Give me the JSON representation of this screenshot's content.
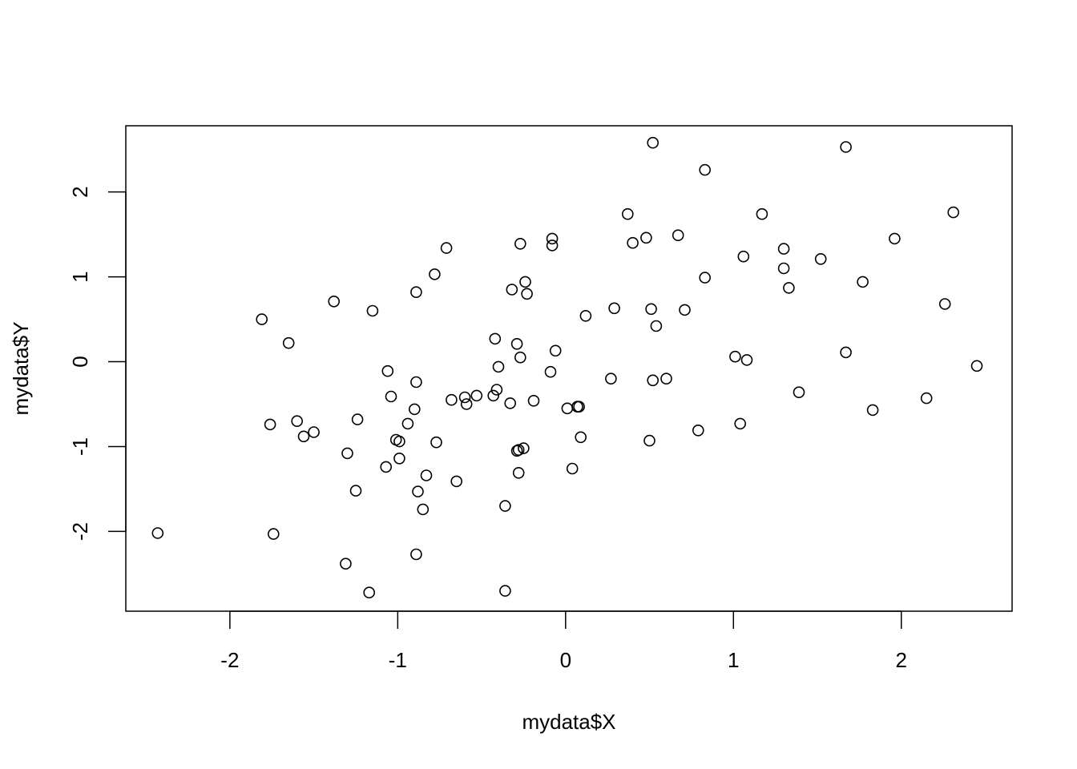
{
  "chart_data": {
    "type": "scatter",
    "title": "",
    "xlabel": "mydata$X",
    "ylabel": "mydata$Y",
    "xlim": [
      -2.62,
      2.66
    ],
    "ylim": [
      -2.94,
      2.78
    ],
    "xticks": [
      -2,
      -1,
      0,
      1,
      2
    ],
    "yticks": [
      -2,
      -1,
      0,
      1,
      2
    ],
    "xtick_labels": [
      "-2",
      "-1",
      "0",
      "1",
      "2"
    ],
    "ytick_labels": [
      "-2",
      "-1",
      "0",
      "1",
      "2"
    ],
    "grid": false,
    "legend": "none",
    "marker": "open-circle",
    "points": [
      {
        "x": -2.43,
        "y": -2.02
      },
      {
        "x": -1.81,
        "y": 0.5
      },
      {
        "x": -1.76,
        "y": -0.74
      },
      {
        "x": -1.74,
        "y": -2.03
      },
      {
        "x": -1.65,
        "y": 0.22
      },
      {
        "x": -1.6,
        "y": -0.7
      },
      {
        "x": -1.56,
        "y": -0.88
      },
      {
        "x": -1.5,
        "y": -0.83
      },
      {
        "x": -1.38,
        "y": 0.71
      },
      {
        "x": -1.31,
        "y": -2.38
      },
      {
        "x": -1.3,
        "y": -1.08
      },
      {
        "x": -1.25,
        "y": -1.52
      },
      {
        "x": -1.24,
        "y": -0.68
      },
      {
        "x": -1.17,
        "y": -2.72
      },
      {
        "x": -1.15,
        "y": 0.6
      },
      {
        "x": -1.07,
        "y": -1.24
      },
      {
        "x": -1.06,
        "y": -0.11
      },
      {
        "x": -1.04,
        "y": -0.41
      },
      {
        "x": -1.01,
        "y": -0.92
      },
      {
        "x": -0.99,
        "y": -0.94
      },
      {
        "x": -0.99,
        "y": -1.14
      },
      {
        "x": -0.94,
        "y": -0.73
      },
      {
        "x": -0.9,
        "y": -0.56
      },
      {
        "x": -0.89,
        "y": -0.24
      },
      {
        "x": -0.89,
        "y": 0.82
      },
      {
        "x": -0.89,
        "y": -2.27
      },
      {
        "x": -0.88,
        "y": -1.53
      },
      {
        "x": -0.85,
        "y": -1.74
      },
      {
        "x": -0.83,
        "y": -1.34
      },
      {
        "x": -0.78,
        "y": 1.03
      },
      {
        "x": -0.77,
        "y": -0.95
      },
      {
        "x": -0.71,
        "y": 1.34
      },
      {
        "x": -0.68,
        "y": -0.45
      },
      {
        "x": -0.65,
        "y": -1.41
      },
      {
        "x": -0.6,
        "y": -0.42
      },
      {
        "x": -0.59,
        "y": -0.5
      },
      {
        "x": -0.53,
        "y": -0.4
      },
      {
        "x": -0.43,
        "y": -0.4
      },
      {
        "x": -0.42,
        "y": 0.27
      },
      {
        "x": -0.41,
        "y": -0.33
      },
      {
        "x": -0.4,
        "y": -0.06
      },
      {
        "x": -0.36,
        "y": -2.7
      },
      {
        "x": -0.36,
        "y": -1.7
      },
      {
        "x": -0.33,
        "y": -0.49
      },
      {
        "x": -0.32,
        "y": 0.85
      },
      {
        "x": -0.29,
        "y": 0.21
      },
      {
        "x": -0.29,
        "y": -1.05
      },
      {
        "x": -0.28,
        "y": -1.31
      },
      {
        "x": -0.28,
        "y": -1.04
      },
      {
        "x": -0.27,
        "y": 1.39
      },
      {
        "x": -0.27,
        "y": 0.05
      },
      {
        "x": -0.25,
        "y": -1.02
      },
      {
        "x": -0.24,
        "y": 0.94
      },
      {
        "x": -0.23,
        "y": 0.8
      },
      {
        "x": -0.19,
        "y": -0.46
      },
      {
        "x": -0.09,
        "y": -0.12
      },
      {
        "x": -0.08,
        "y": 1.45
      },
      {
        "x": -0.08,
        "y": 1.37
      },
      {
        "x": -0.06,
        "y": 0.13
      },
      {
        "x": 0.01,
        "y": -0.55
      },
      {
        "x": 0.04,
        "y": -1.26
      },
      {
        "x": 0.07,
        "y": -0.53
      },
      {
        "x": 0.08,
        "y": -0.53
      },
      {
        "x": 0.09,
        "y": -0.89
      },
      {
        "x": 0.12,
        "y": 0.54
      },
      {
        "x": 0.27,
        "y": -0.2
      },
      {
        "x": 0.29,
        "y": 0.63
      },
      {
        "x": 0.37,
        "y": 1.74
      },
      {
        "x": 0.4,
        "y": 1.4
      },
      {
        "x": 0.48,
        "y": 1.46
      },
      {
        "x": 0.5,
        "y": -0.93
      },
      {
        "x": 0.51,
        "y": 0.62
      },
      {
        "x": 0.52,
        "y": 2.58
      },
      {
        "x": 0.52,
        "y": -0.22
      },
      {
        "x": 0.54,
        "y": 0.42
      },
      {
        "x": 0.6,
        "y": -0.2
      },
      {
        "x": 0.67,
        "y": 1.49
      },
      {
        "x": 0.71,
        "y": 0.61
      },
      {
        "x": 0.79,
        "y": -0.81
      },
      {
        "x": 0.83,
        "y": 2.26
      },
      {
        "x": 0.83,
        "y": 0.99
      },
      {
        "x": 1.01,
        "y": 0.06
      },
      {
        "x": 1.04,
        "y": -0.73
      },
      {
        "x": 1.06,
        "y": 1.24
      },
      {
        "x": 1.08,
        "y": 0.02
      },
      {
        "x": 1.17,
        "y": 1.74
      },
      {
        "x": 1.3,
        "y": 1.33
      },
      {
        "x": 1.3,
        "y": 1.1
      },
      {
        "x": 1.33,
        "y": 0.87
      },
      {
        "x": 1.39,
        "y": -0.36
      },
      {
        "x": 1.52,
        "y": 1.21
      },
      {
        "x": 1.67,
        "y": 0.11
      },
      {
        "x": 1.67,
        "y": 2.53
      },
      {
        "x": 1.77,
        "y": 0.94
      },
      {
        "x": 1.83,
        "y": -0.57
      },
      {
        "x": 1.96,
        "y": 1.45
      },
      {
        "x": 2.15,
        "y": -0.43
      },
      {
        "x": 2.26,
        "y": 0.68
      },
      {
        "x": 2.31,
        "y": 1.76
      },
      {
        "x": 2.45,
        "y": -0.05
      }
    ]
  }
}
